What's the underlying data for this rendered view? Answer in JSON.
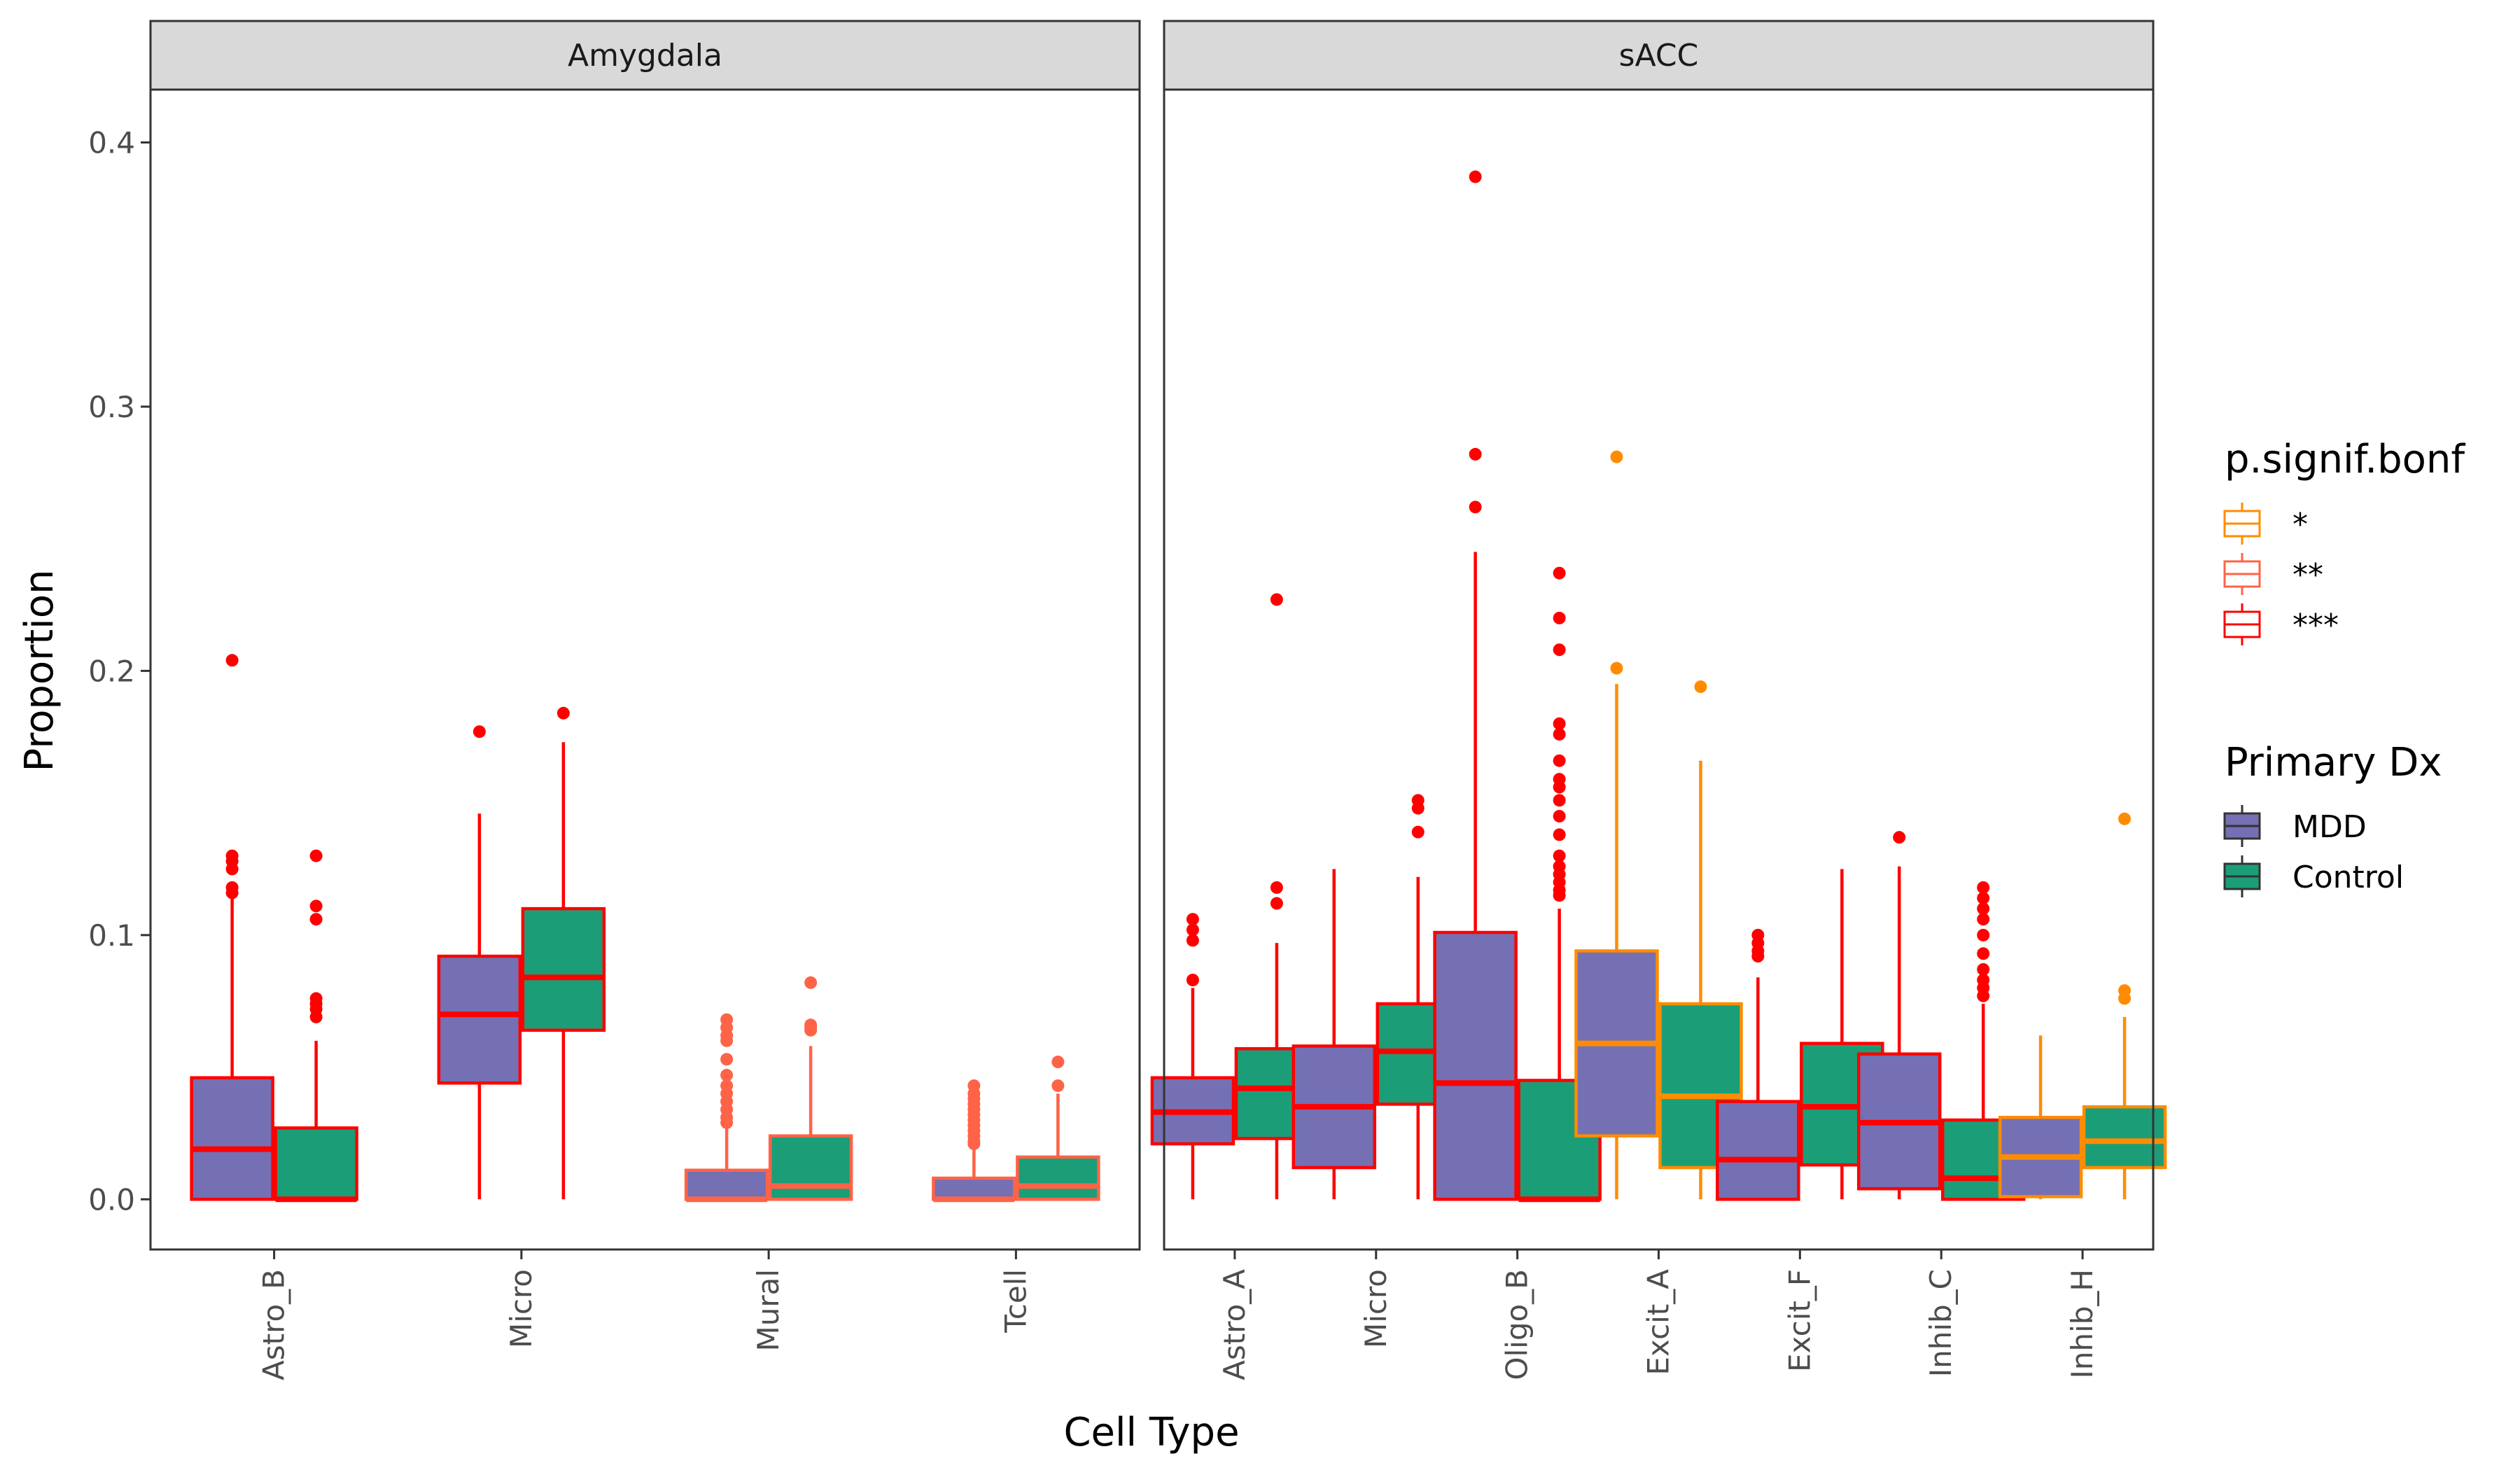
{
  "chart_data": {
    "type": "boxplot",
    "xlabel": "Cell Type",
    "ylabel": "Proportion",
    "ylim": [
      -0.019,
      0.42
    ],
    "y_ticks": [
      0.0,
      0.1,
      0.2,
      0.3,
      0.4
    ],
    "y_tick_labels": [
      "0.0",
      "0.1",
      "0.2",
      "0.3",
      "0.4"
    ],
    "grid": true,
    "colors": {
      "MDD": "#7570B3",
      "Control": "#1B9E77",
      "*": "#FF8C00",
      "**": "#FF6347",
      "***": "#FF0000"
    },
    "legend": {
      "placement": "right",
      "signif_title": "p.signif.bonf",
      "signif_levels": [
        "*",
        "**",
        "***"
      ],
      "dx_title": "Primary Dx",
      "dx_levels": [
        "MDD",
        "Control"
      ]
    },
    "panels": [
      {
        "name": "Amygdala",
        "categories": [
          {
            "label": "Astro_B",
            "signif": "***",
            "MDD": {
              "lower": 0.0,
              "q1": 0.0,
              "median": 0.019,
              "q3": 0.046,
              "upper": 0.114,
              "outliers": [
                0.204,
                0.13,
                0.128,
                0.125,
                0.118,
                0.116
              ]
            },
            "Control": {
              "lower": 0.0,
              "q1": 0.0,
              "median": 0.0,
              "q3": 0.027,
              "upper": 0.06,
              "outliers": [
                0.13,
                0.111,
                0.106,
                0.076,
                0.074,
                0.072,
                0.069
              ]
            }
          },
          {
            "label": "Micro",
            "signif": "***",
            "MDD": {
              "lower": 0.0,
              "q1": 0.044,
              "median": 0.07,
              "q3": 0.092,
              "upper": 0.146,
              "outliers": [
                0.177
              ]
            },
            "Control": {
              "lower": 0.0,
              "q1": 0.064,
              "median": 0.084,
              "q3": 0.11,
              "upper": 0.173,
              "outliers": [
                0.184
              ]
            }
          },
          {
            "label": "Mural",
            "signif": "**",
            "MDD": {
              "lower": 0.0,
              "q1": 0.0,
              "median": 0.0,
              "q3": 0.011,
              "upper": 0.027,
              "outliers": [
                0.068,
                0.065,
                0.062,
                0.06,
                0.053,
                0.047,
                0.043,
                0.04,
                0.037,
                0.034,
                0.031,
                0.029
              ]
            },
            "Control": {
              "lower": 0.0,
              "q1": 0.0,
              "median": 0.005,
              "q3": 0.024,
              "upper": 0.058,
              "outliers": [
                0.082,
                0.066,
                0.065,
                0.064
              ]
            }
          },
          {
            "label": "Tcell",
            "signif": "**",
            "MDD": {
              "lower": 0.0,
              "q1": 0.0,
              "median": 0.0,
              "q3": 0.008,
              "upper": 0.019,
              "outliers": [
                0.043,
                0.04,
                0.038,
                0.036,
                0.034,
                0.032,
                0.03,
                0.028,
                0.026,
                0.024,
                0.022,
                0.021
              ]
            },
            "Control": {
              "lower": 0.0,
              "q1": 0.0,
              "median": 0.005,
              "q3": 0.016,
              "upper": 0.04,
              "outliers": [
                0.052,
                0.043
              ]
            }
          }
        ]
      },
      {
        "name": "sACC",
        "categories": [
          {
            "label": "Astro_A",
            "signif": "***",
            "MDD": {
              "lower": 0.0,
              "q1": 0.021,
              "median": 0.033,
              "q3": 0.046,
              "upper": 0.08,
              "outliers": [
                0.106,
                0.102,
                0.098,
                0.083
              ]
            },
            "Control": {
              "lower": 0.0,
              "q1": 0.023,
              "median": 0.042,
              "q3": 0.057,
              "upper": 0.097,
              "outliers": [
                0.227,
                0.118,
                0.112
              ]
            }
          },
          {
            "label": "Micro",
            "signif": "***",
            "MDD": {
              "lower": 0.0,
              "q1": 0.012,
              "median": 0.035,
              "q3": 0.058,
              "upper": 0.125,
              "outliers": []
            },
            "Control": {
              "lower": 0.0,
              "q1": 0.036,
              "median": 0.056,
              "q3": 0.074,
              "upper": 0.122,
              "outliers": [
                0.151,
                0.148,
                0.139
              ]
            }
          },
          {
            "label": "Oligo_B",
            "signif": "***",
            "MDD": {
              "lower": 0.0,
              "q1": 0.0,
              "median": 0.044,
              "q3": 0.101,
              "upper": 0.245,
              "outliers": [
                0.387,
                0.282,
                0.262
              ]
            },
            "Control": {
              "lower": 0.0,
              "q1": 0.0,
              "median": 0.0,
              "q3": 0.045,
              "upper": 0.11,
              "outliers": [
                0.237,
                0.22,
                0.208,
                0.18,
                0.176,
                0.166,
                0.159,
                0.156,
                0.151,
                0.145,
                0.138,
                0.13,
                0.126,
                0.123,
                0.12,
                0.117,
                0.115
              ]
            }
          },
          {
            "label": "Excit_A",
            "signif": "*",
            "MDD": {
              "lower": 0.0,
              "q1": 0.024,
              "median": 0.059,
              "q3": 0.094,
              "upper": 0.195,
              "outliers": [
                0.281,
                0.201
              ]
            },
            "Control": {
              "lower": 0.0,
              "q1": 0.012,
              "median": 0.039,
              "q3": 0.074,
              "upper": 0.166,
              "outliers": [
                0.194
              ]
            }
          },
          {
            "label": "Excit_F",
            "signif": "***",
            "MDD": {
              "lower": 0.0,
              "q1": 0.0,
              "median": 0.015,
              "q3": 0.037,
              "upper": 0.084,
              "outliers": [
                0.1,
                0.097,
                0.094,
                0.092
              ]
            },
            "Control": {
              "lower": 0.0,
              "q1": 0.013,
              "median": 0.035,
              "q3": 0.059,
              "upper": 0.125,
              "outliers": []
            }
          },
          {
            "label": "Inhib_C",
            "signif": "***",
            "MDD": {
              "lower": 0.0,
              "q1": 0.004,
              "median": 0.029,
              "q3": 0.055,
              "upper": 0.126,
              "outliers": [
                0.137
              ]
            },
            "Control": {
              "lower": 0.0,
              "q1": 0.0,
              "median": 0.008,
              "q3": 0.03,
              "upper": 0.074,
              "outliers": [
                0.118,
                0.114,
                0.11,
                0.106,
                0.1,
                0.093,
                0.087,
                0.083,
                0.08,
                0.077
              ]
            }
          },
          {
            "label": "Inhib_H",
            "signif": "*",
            "MDD": {
              "lower": 0.0,
              "q1": 0.001,
              "median": 0.016,
              "q3": 0.031,
              "upper": 0.062,
              "outliers": []
            },
            "Control": {
              "lower": 0.0,
              "q1": 0.012,
              "median": 0.022,
              "q3": 0.035,
              "upper": 0.069,
              "outliers": [
                0.144,
                0.079,
                0.076
              ]
            }
          }
        ]
      }
    ]
  }
}
